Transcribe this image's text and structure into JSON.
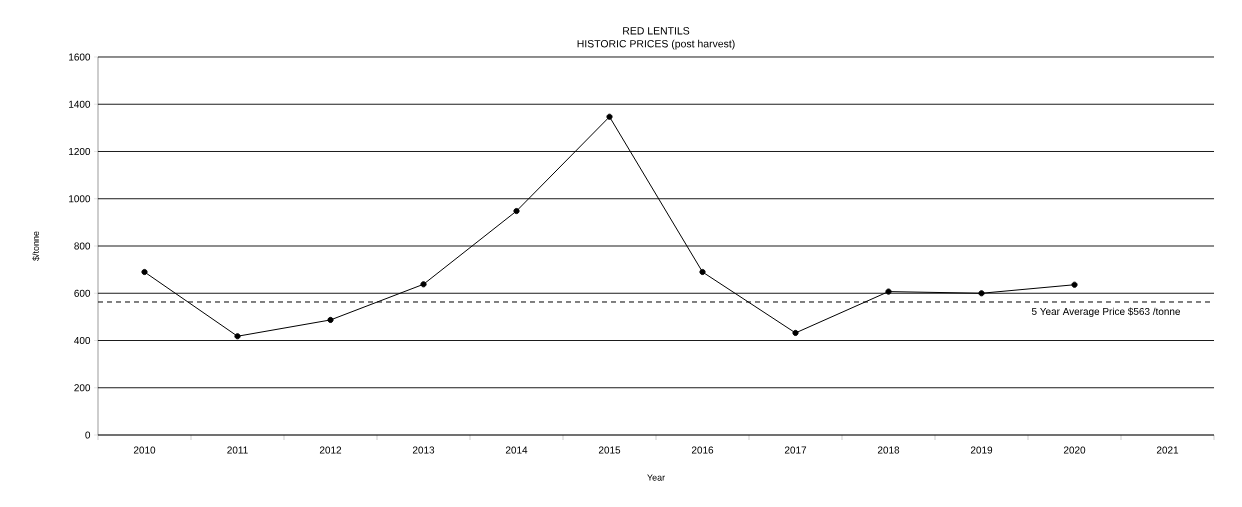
{
  "chart_data": {
    "type": "line",
    "title": "RED LENTILS",
    "subtitle": "HISTORIC PRICES (post harvest)",
    "xlabel": "Year",
    "ylabel": "$/tonne",
    "categories": [
      "2010",
      "2011",
      "2012",
      "2013",
      "2014",
      "2015",
      "2016",
      "2017",
      "2018",
      "2019",
      "2020",
      "2021"
    ],
    "series": [
      {
        "color": "#000000",
        "values": [
          690,
          418,
          487,
          638,
          948,
          1347,
          690,
          432,
          607,
          600,
          636,
          null
        ]
      }
    ],
    "ylim": [
      0,
      1600
    ],
    "yticks": [
      0,
      200,
      400,
      600,
      800,
      1000,
      1200,
      1400,
      1600
    ],
    "grid": "y",
    "marker": "circle",
    "line_style": "solid",
    "ref_lines": [
      {
        "axis": "y",
        "value": 563,
        "label": "5 Year Average Price $563 /tonne",
        "color": "#000000",
        "line_style": "dashed"
      }
    ]
  }
}
